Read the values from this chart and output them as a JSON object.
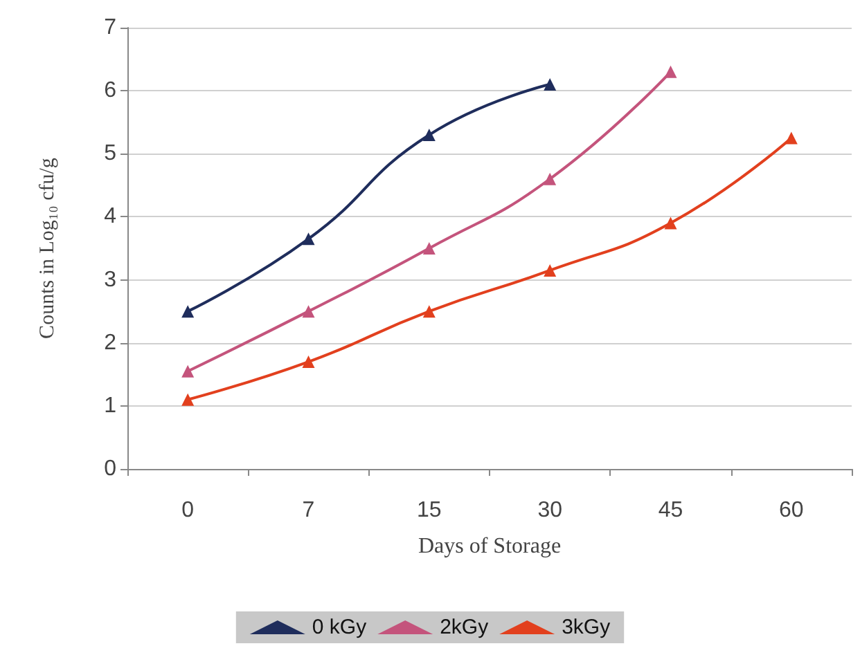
{
  "chart_data": {
    "type": "line",
    "xlabel": "Days of Storage",
    "ylabel": "Counts in Log₁₀ cfu/g",
    "categories": [
      "0",
      "7",
      "15",
      "30",
      "45",
      "60"
    ],
    "series": [
      {
        "name": "0 kGy",
        "color": "#1f2d5c",
        "values": [
          2.5,
          3.65,
          5.3,
          6.1,
          null,
          null
        ]
      },
      {
        "name": "2kGy",
        "color": "#c4547c",
        "values": [
          1.55,
          2.5,
          3.5,
          4.6,
          6.3,
          null
        ]
      },
      {
        "name": "3kGy",
        "color": "#e2401e",
        "values": [
          1.1,
          1.7,
          2.5,
          3.15,
          3.9,
          5.25
        ]
      }
    ],
    "ylim": [
      0,
      7
    ],
    "yticks": [
      0,
      1,
      2,
      3,
      4,
      5,
      6,
      7
    ],
    "grid": "y",
    "legend": "bottom",
    "marker": "triangle",
    "line_style": "solid"
  }
}
